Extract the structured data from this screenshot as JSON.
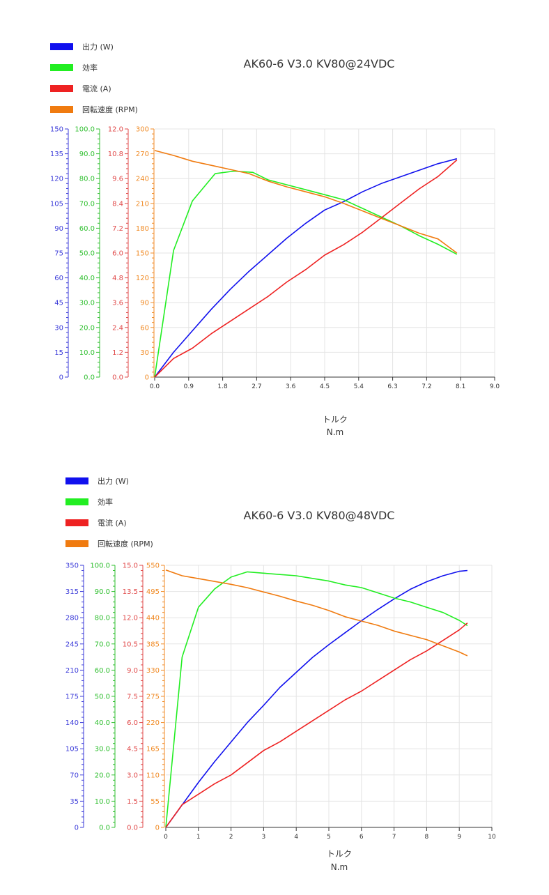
{
  "chart_data": [
    {
      "type": "line",
      "title": "AK60-6 V3.0 KV80@24VDC",
      "xlabel": "トルク",
      "xunit": "N.m",
      "xlim": [
        0,
        9
      ],
      "xticks": [
        "0.0",
        "0.9",
        "1.8",
        "2.7",
        "3.6",
        "4.5",
        "5.4",
        "6.3",
        "7.2",
        "8.1",
        "9.0"
      ],
      "grid": true,
      "legend_position": "top-left",
      "axes": [
        {
          "name": "power",
          "color": "#3b3bd9",
          "ylim": [
            0,
            150
          ],
          "ticks": [
            "0",
            "15",
            "30",
            "45",
            "60",
            "75",
            "90",
            "105",
            "120",
            "135",
            "150"
          ]
        },
        {
          "name": "efficiency",
          "color": "#2fbf2f",
          "ylim": [
            0,
            100
          ],
          "ticks": [
            "0.0",
            "10.0",
            "20.0",
            "30.0",
            "40.0",
            "50.0",
            "60.0",
            "70.0",
            "80.0",
            "90.0",
            "100.0"
          ]
        },
        {
          "name": "current",
          "color": "#e04848",
          "ylim": [
            0,
            12
          ],
          "ticks": [
            "0.0",
            "1.2",
            "2.4",
            "3.6",
            "4.8",
            "6.0",
            "7.2",
            "8.4",
            "9.6",
            "10.8",
            "12.0"
          ]
        },
        {
          "name": "speed",
          "color": "#f08a24",
          "ylim": [
            0,
            300
          ],
          "ticks": [
            "0",
            "30",
            "60",
            "90",
            "120",
            "150",
            "180",
            "210",
            "240",
            "270",
            "300"
          ]
        }
      ],
      "series": [
        {
          "name": "出力 (W)",
          "color": "#1010ee",
          "axis": "power",
          "x": [
            0,
            0.5,
            1,
            1.5,
            2,
            2.5,
            3,
            3.5,
            4,
            4.5,
            5,
            5.5,
            6,
            6.5,
            7,
            7.5,
            8
          ],
          "y": [
            0,
            15,
            28,
            41,
            53,
            64,
            74,
            84,
            93,
            101,
            106,
            112,
            117,
            121,
            125,
            129,
            132
          ]
        },
        {
          "name": "効率",
          "color": "#22ee22",
          "axis": "efficiency",
          "x": [
            0,
            0.5,
            1,
            1.6,
            2.1,
            2.6,
            3,
            3.5,
            4,
            4.5,
            5,
            5.5,
            6,
            6.5,
            7,
            7.5,
            8
          ],
          "y": [
            0,
            51,
            71,
            82,
            83,
            82.5,
            79.5,
            77.5,
            75.5,
            73.5,
            71.5,
            68,
            64.5,
            61,
            57,
            53.5,
            49.5
          ]
        },
        {
          "name": "電流 (A)",
          "color": "#ee2222",
          "axis": "current",
          "x": [
            0,
            0.5,
            1,
            1.5,
            2,
            2.5,
            3,
            3.5,
            4,
            4.5,
            5,
            5.5,
            6,
            6.5,
            7,
            7.5,
            8
          ],
          "y": [
            0,
            0.9,
            1.4,
            2.1,
            2.7,
            3.3,
            3.9,
            4.6,
            5.2,
            5.9,
            6.4,
            7.0,
            7.7,
            8.4,
            9.1,
            9.7,
            10.5
          ]
        },
        {
          "name": "回転速度 (RPM)",
          "color": "#f07b10",
          "axis": "speed",
          "x": [
            0,
            0.5,
            1,
            1.5,
            2,
            2.5,
            3,
            3.5,
            4,
            4.5,
            5,
            5.5,
            6,
            6.5,
            7,
            7.5,
            8
          ],
          "y": [
            274,
            268,
            261,
            256,
            251,
            246,
            237,
            230,
            224,
            218,
            210,
            201,
            192,
            183,
            174,
            167,
            150
          ]
        }
      ]
    },
    {
      "type": "line",
      "title": "AK60-6 V3.0 KV80@48VDC",
      "xlabel": "トルク",
      "xunit": "N.m",
      "xlim": [
        0,
        10
      ],
      "xticks": [
        "0",
        "1",
        "2",
        "3",
        "4",
        "5",
        "6",
        "7",
        "8",
        "9",
        "10"
      ],
      "grid": true,
      "legend_position": "top-left",
      "axes": [
        {
          "name": "power",
          "color": "#3b3bd9",
          "ylim": [
            0,
            350
          ],
          "ticks": [
            "0",
            "35",
            "70",
            "105",
            "140",
            "175",
            "210",
            "245",
            "280",
            "315",
            "350"
          ]
        },
        {
          "name": "efficiency",
          "color": "#2fbf2f",
          "ylim": [
            0,
            100
          ],
          "ticks": [
            "0.0",
            "10.0",
            "20.0",
            "30.0",
            "40.0",
            "50.0",
            "60.0",
            "70.0",
            "80.0",
            "90.0",
            "100.0"
          ]
        },
        {
          "name": "current",
          "color": "#e04848",
          "ylim": [
            0,
            15
          ],
          "ticks": [
            "0.0",
            "1.5",
            "3.0",
            "4.5",
            "6.0",
            "7.5",
            "9.0",
            "10.5",
            "12.0",
            "13.5",
            "15.0"
          ]
        },
        {
          "name": "speed",
          "color": "#f08a24",
          "ylim": [
            0,
            550
          ],
          "ticks": [
            "0",
            "55",
            "110",
            "165",
            "220",
            "275",
            "330",
            "385",
            "440",
            "495",
            "550"
          ]
        }
      ],
      "series": [
        {
          "name": "出力 (W)",
          "color": "#1010ee",
          "axis": "power",
          "x": [
            0,
            0.5,
            1,
            1.5,
            2,
            2.5,
            3,
            3.5,
            4,
            4.5,
            5,
            5.5,
            6,
            6.5,
            7,
            7.5,
            8,
            8.5,
            9,
            9.25
          ],
          "y": [
            0,
            30,
            60,
            88,
            114,
            140,
            163,
            187,
            207,
            227,
            244,
            260,
            276,
            291,
            305,
            318,
            328,
            336,
            342,
            343
          ]
        },
        {
          "name": "効率",
          "color": "#22ee22",
          "axis": "efficiency",
          "x": [
            0,
            0.5,
            1,
            1.5,
            2,
            2.5,
            3,
            3.5,
            4,
            4.5,
            5,
            5.5,
            6,
            6.5,
            7,
            7.5,
            8,
            8.5,
            9,
            9.25
          ],
          "y": [
            0,
            65,
            84,
            91,
            95.5,
            97.5,
            97,
            96.5,
            96,
            95,
            94,
            92.5,
            91.5,
            89.5,
            87.5,
            86,
            84,
            82,
            79,
            77
          ]
        },
        {
          "name": "電流 (A)",
          "color": "#ee2222",
          "axis": "current",
          "x": [
            0,
            0.5,
            1,
            1.5,
            2,
            2.5,
            3,
            3.5,
            4,
            4.5,
            5,
            5.5,
            6,
            6.5,
            7,
            7.5,
            8,
            8.5,
            9,
            9.25
          ],
          "y": [
            0,
            1.3,
            1.9,
            2.5,
            3.0,
            3.7,
            4.4,
            4.9,
            5.5,
            6.1,
            6.7,
            7.3,
            7.8,
            8.4,
            9.0,
            9.6,
            10.1,
            10.7,
            11.3,
            11.7
          ]
        },
        {
          "name": "回転速度 (RPM)",
          "color": "#f07b10",
          "axis": "speed",
          "x": [
            0,
            0.5,
            1,
            1.5,
            2,
            2.5,
            3,
            3.5,
            4,
            4.5,
            5,
            5.5,
            6,
            6.5,
            7,
            7.5,
            8,
            8.5,
            9,
            9.25
          ],
          "y": [
            540,
            528,
            522,
            516,
            510,
            503,
            494,
            485,
            475,
            466,
            455,
            442,
            433,
            424,
            412,
            403,
            394,
            381,
            368,
            360
          ]
        }
      ]
    }
  ]
}
